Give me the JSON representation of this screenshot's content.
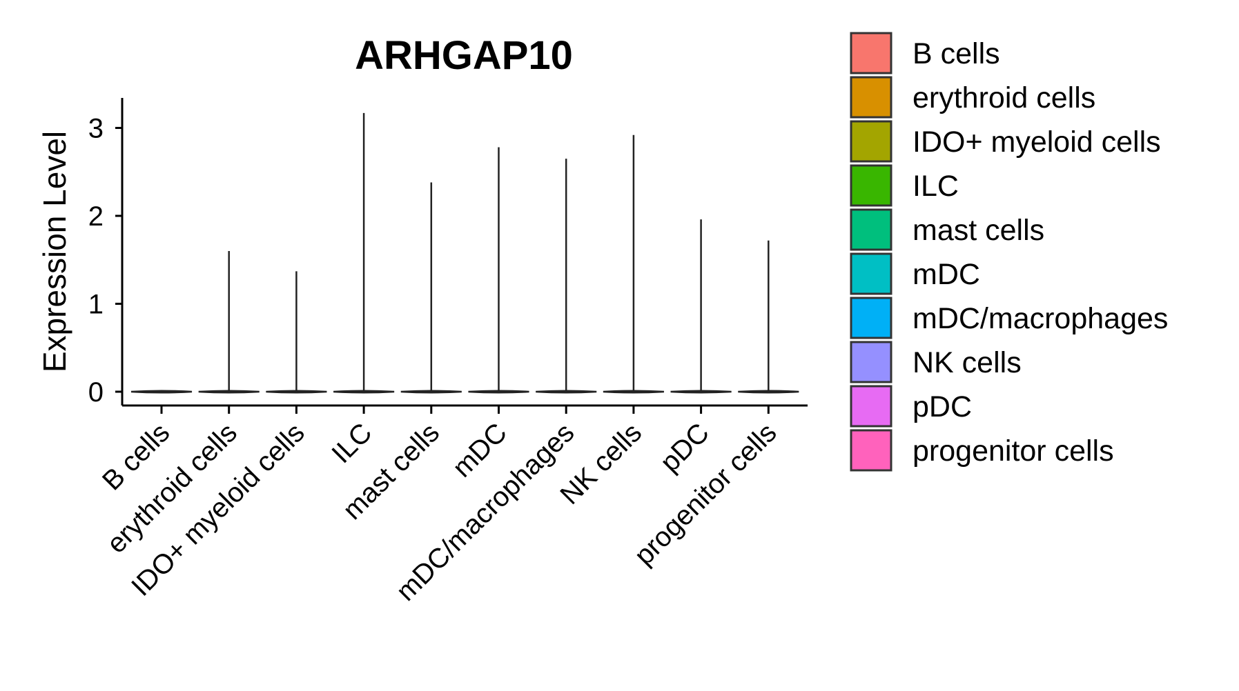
{
  "chart_data": {
    "type": "violin",
    "title": "ARHGAP10",
    "xlabel": "",
    "ylabel": "Expression Level",
    "ylim": [
      0,
      3.35
    ],
    "yticks": [
      0,
      1,
      2,
      3
    ],
    "categories": [
      "B cells",
      "erythroid cells",
      "IDO+ myeloid cells",
      "ILC",
      "mast cells",
      "mDC",
      "mDC/macrophages",
      "NK cells",
      "pDC",
      "progenitor cells"
    ],
    "max_values": [
      0,
      1.6,
      1.37,
      3.17,
      2.38,
      2.78,
      2.65,
      2.92,
      1.96,
      1.72
    ],
    "colors": [
      "#F8766D",
      "#D89000",
      "#A3A500",
      "#39B600",
      "#00BF7D",
      "#00BFC4",
      "#00B0F6",
      "#9590FF",
      "#E76BF3",
      "#FF62BC"
    ],
    "legend": {
      "position": "right",
      "entries": [
        "B cells",
        "erythroid cells",
        "IDO+ myeloid cells",
        "ILC",
        "mast cells",
        "mDC",
        "mDC/macrophages",
        "NK cells",
        "pDC",
        "progenitor cells"
      ]
    },
    "grid": false
  }
}
